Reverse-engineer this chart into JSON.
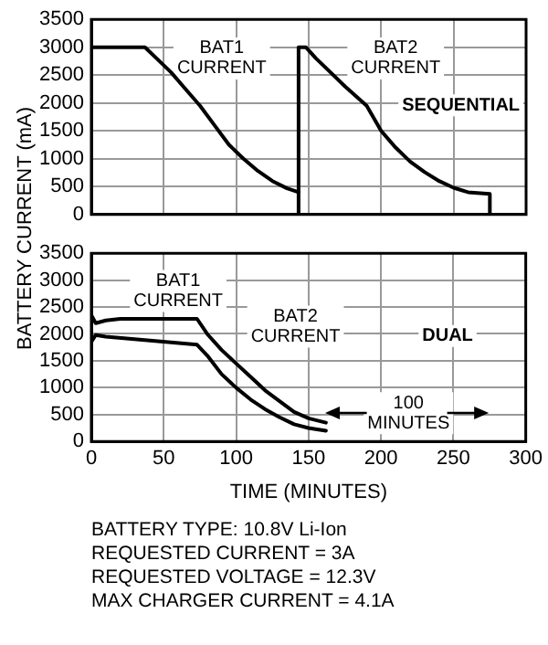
{
  "chart_data": [
    {
      "type": "line",
      "ylabel": "BATTERY CURRENT (mA)",
      "xlim": [
        0,
        300
      ],
      "xticks": [
        0,
        50,
        100,
        150,
        200,
        250,
        300
      ],
      "ylim": [
        0,
        3500
      ],
      "yticks": [
        0,
        500,
        1000,
        1500,
        2000,
        2500,
        3000,
        3500
      ],
      "grid": true,
      "legend": false,
      "marker": "none",
      "line_style": "solid",
      "tick_labels": "y",
      "series": [
        {
          "color": "#000000",
          "x": [
            0,
            37,
            45,
            55,
            65,
            75,
            85,
            95,
            105,
            115,
            125,
            135,
            143
          ],
          "values": [
            3000,
            3000,
            2800,
            2550,
            2250,
            1950,
            1600,
            1250,
            1000,
            780,
            600,
            470,
            400
          ]
        },
        {
          "color": "#000000",
          "x": [
            143,
            143,
            148,
            155,
            165,
            175,
            190,
            200,
            210,
            220,
            230,
            240,
            250,
            260,
            275,
            275
          ],
          "values": [
            0,
            3000,
            3000,
            2800,
            2550,
            2300,
            1950,
            1500,
            1200,
            950,
            760,
            600,
            480,
            400,
            370,
            0
          ]
        }
      ],
      "annotations": [
        "BAT1 CURRENT",
        "BAT2 CURRENT",
        "SEQUENTIAL"
      ]
    },
    {
      "type": "line",
      "xlabel": "TIME (MINUTES)",
      "xlim": [
        0,
        300
      ],
      "xticks": [
        0,
        50,
        100,
        150,
        200,
        250,
        300
      ],
      "ylim": [
        0,
        3500
      ],
      "yticks": [
        0,
        500,
        1000,
        1500,
        2000,
        2500,
        3000,
        3500
      ],
      "grid": true,
      "legend": false,
      "marker": "none",
      "line_style": "solid",
      "series": [
        {
          "color": "#000000",
          "x": [
            0,
            3,
            10,
            20,
            73,
            80,
            90,
            100,
            110,
            120,
            130,
            140,
            150,
            162
          ],
          "values": [
            2350,
            2200,
            2250,
            2280,
            2280,
            2000,
            1700,
            1450,
            1200,
            950,
            750,
            550,
            430,
            350
          ]
        },
        {
          "color": "#000000",
          "x": [
            0,
            3,
            10,
            73,
            80,
            90,
            100,
            110,
            120,
            130,
            140,
            150,
            162
          ],
          "values": [
            1850,
            1980,
            1950,
            1800,
            1600,
            1250,
            1000,
            780,
            600,
            450,
            320,
            250,
            200
          ]
        }
      ],
      "annotations": [
        "BAT1 CURRENT",
        "BAT2 CURRENT",
        "DUAL",
        "100 MINUTES",
        "BATTERY TYPE: 10.8V Li-Ion",
        "REQUESTED CURRENT = 3A",
        "REQUESTED VOLTAGE = 12.3V",
        "MAX CHARGER CURRENT = 4.1A"
      ]
    }
  ]
}
